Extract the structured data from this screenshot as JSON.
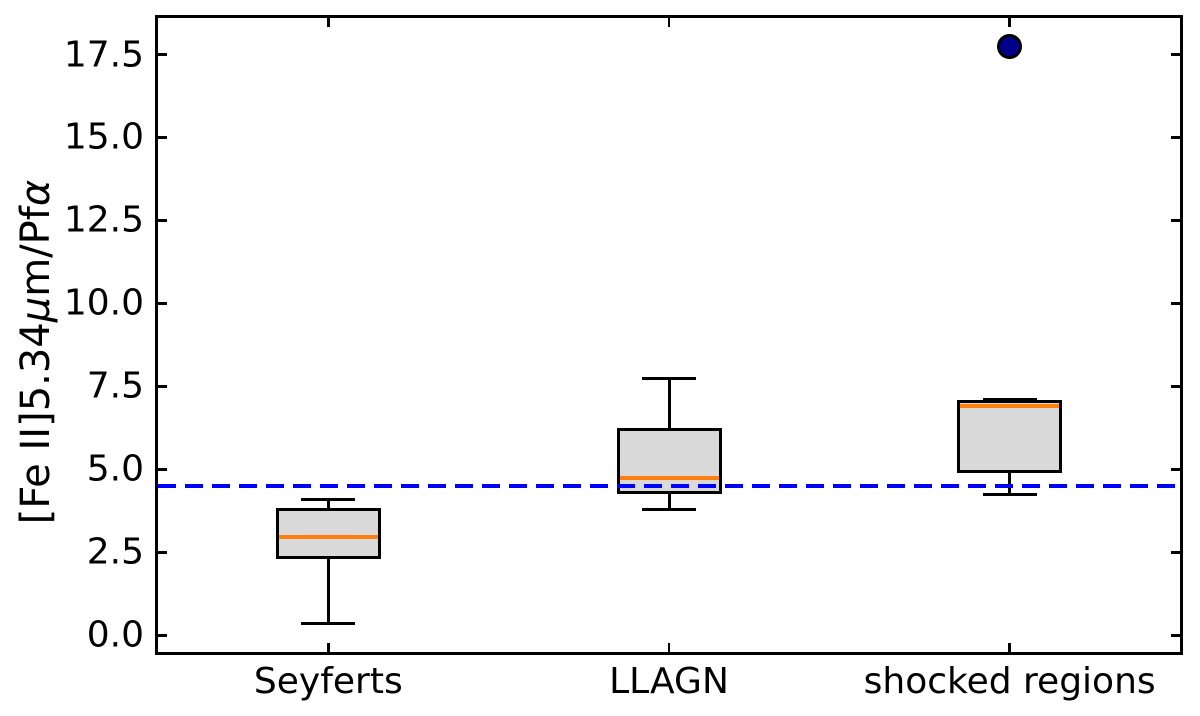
{
  "chart_data": {
    "type": "box",
    "title": "",
    "xlabel": "",
    "ylabel": "[Fe II]5.34μm/Pfα",
    "ylabel_parts": {
      "pre": "[Fe II]5.34",
      "mu": "μ",
      "mid": "m/Pf",
      "alpha": "α"
    },
    "categories": [
      "Seyferts",
      "LLAGN",
      "shocked regions"
    ],
    "y_ticks": [
      0.0,
      2.5,
      5.0,
      7.5,
      10.0,
      12.5,
      15.0,
      17.5
    ],
    "y_tick_labels": [
      "0.0",
      "2.5",
      "5.0",
      "7.5",
      "10.0",
      "12.5",
      "15.0",
      "17.5"
    ],
    "ylim": [
      -0.5,
      18.6
    ],
    "grid": false,
    "legend": null,
    "reference_line": {
      "y": 4.5,
      "style": "dashed",
      "color": "#0000ff"
    },
    "boxes": [
      {
        "category": "Seyferts",
        "whisker_low": 0.35,
        "q1": 2.3,
        "median": 2.95,
        "q3": 3.85,
        "whisker_high": 4.1,
        "outliers": []
      },
      {
        "category": "LLAGN",
        "whisker_low": 3.8,
        "q1": 4.25,
        "median": 4.75,
        "q3": 6.25,
        "whisker_high": 7.75,
        "outliers": []
      },
      {
        "category": "shocked regions",
        "whisker_low": 4.25,
        "q1": 4.9,
        "median": 6.9,
        "q3": 7.1,
        "whisker_high": 7.1,
        "outliers": [
          17.75
        ]
      }
    ],
    "colors": {
      "box_fill": "#d9d9d9",
      "box_edge": "#000000",
      "median": "#ff7f0e",
      "whisker": "#000000",
      "outlier_fill": "#00008b",
      "outlier_edge": "#000000",
      "reference_line": "#0000ff",
      "spine": "#000000",
      "background": "#ffffff"
    }
  }
}
